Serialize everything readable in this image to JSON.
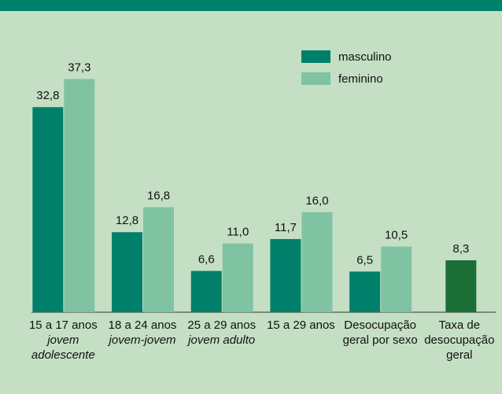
{
  "chart_data": {
    "type": "bar",
    "categories": [
      [
        "15 a 17 anos"
      ],
      [
        "18 a 24 anos"
      ],
      [
        "25 a 29 anos"
      ],
      [
        "15 a 29 anos"
      ],
      [
        "Desocupação",
        "geral por  sexo"
      ],
      [
        "Taxa de",
        "desocupação",
        "geral"
      ]
    ],
    "category_notes": [
      [
        "jovem",
        "adolescente"
      ],
      [
        "jovem-jovem"
      ],
      [
        "jovem adulto"
      ],
      null,
      null,
      null
    ],
    "series": [
      {
        "name": "masculino",
        "color": "#00806a",
        "values": [
          32.8,
          12.8,
          6.6,
          11.7,
          6.5,
          null
        ],
        "value_labels": [
          "32,8",
          "12,8",
          "6,6",
          "11,7",
          "6,5",
          null
        ]
      },
      {
        "name": "feminino",
        "color": "#7fc3a2",
        "values": [
          37.3,
          16.8,
          11.0,
          16.0,
          10.5,
          null
        ],
        "value_labels": [
          "37,3",
          "16,8",
          "11,0",
          "16,0",
          "10,5",
          null
        ]
      }
    ],
    "overall": {
      "value": 8.3,
      "value_label": "8,3",
      "color": "#1a6e36"
    },
    "ylim": [
      0,
      40
    ]
  }
}
